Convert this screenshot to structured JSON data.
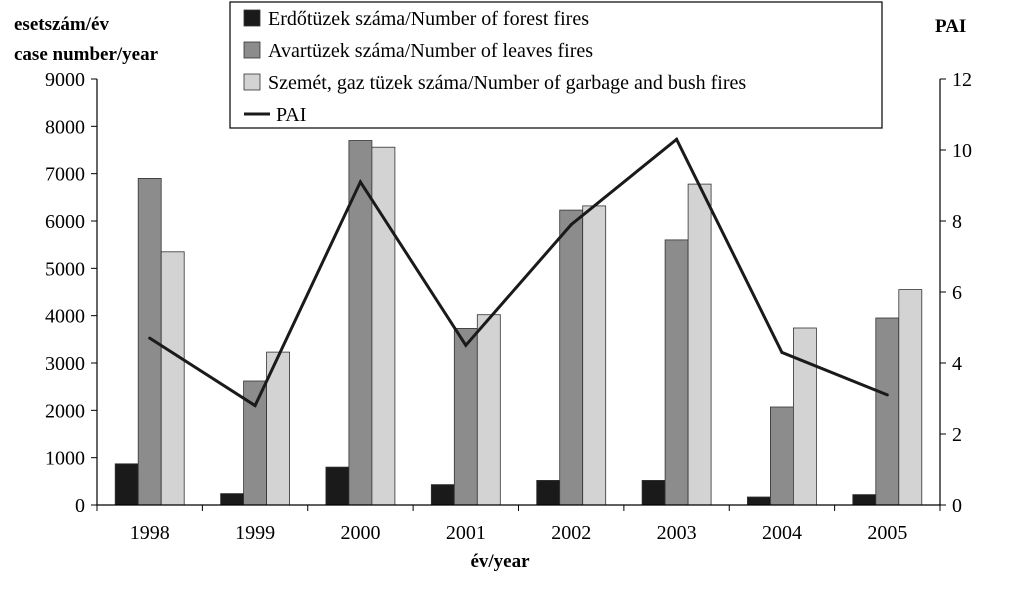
{
  "chart_data": {
    "type": "bar",
    "categories": [
      "1998",
      "1999",
      "2000",
      "2001",
      "2002",
      "2003",
      "2004",
      "2005"
    ],
    "series": [
      {
        "name": "Erdőtüzek száma/Number of forest fires",
        "type": "bar",
        "axis": "left",
        "color": "#1a1a1a",
        "values": [
          870,
          240,
          800,
          430,
          520,
          520,
          170,
          220
        ]
      },
      {
        "name": "Avartüzek száma/Number of leaves fires",
        "type": "bar",
        "axis": "left",
        "color": "#8c8c8c",
        "values": [
          6900,
          2620,
          7700,
          3730,
          6230,
          5600,
          2070,
          3950
        ]
      },
      {
        "name": "Szemét, gaz tüzek száma/Number of garbage and bush fires",
        "type": "bar",
        "axis": "left",
        "color": "#d3d3d3",
        "values": [
          5350,
          3230,
          7560,
          4020,
          6320,
          6780,
          3740,
          4550
        ]
      },
      {
        "name": "PAI",
        "type": "line",
        "axis": "right",
        "color": "#1a1a1a",
        "values": [
          4.7,
          2.8,
          9.1,
          4.5,
          7.9,
          10.3,
          4.3,
          3.1
        ]
      }
    ],
    "ylabel_line1": "esetszám/év",
    "ylabel_line2": "case number/year",
    "y2label": "PAI",
    "xlabel": "év/year",
    "ylim": [
      0,
      9000
    ],
    "y_ticks": [
      0,
      1000,
      2000,
      3000,
      4000,
      5000,
      6000,
      7000,
      8000,
      9000
    ],
    "y2lim": [
      0,
      12
    ],
    "y2_ticks": [
      0,
      2,
      4,
      6,
      8,
      10,
      12
    ],
    "legend_position": "top",
    "grid": false
  }
}
